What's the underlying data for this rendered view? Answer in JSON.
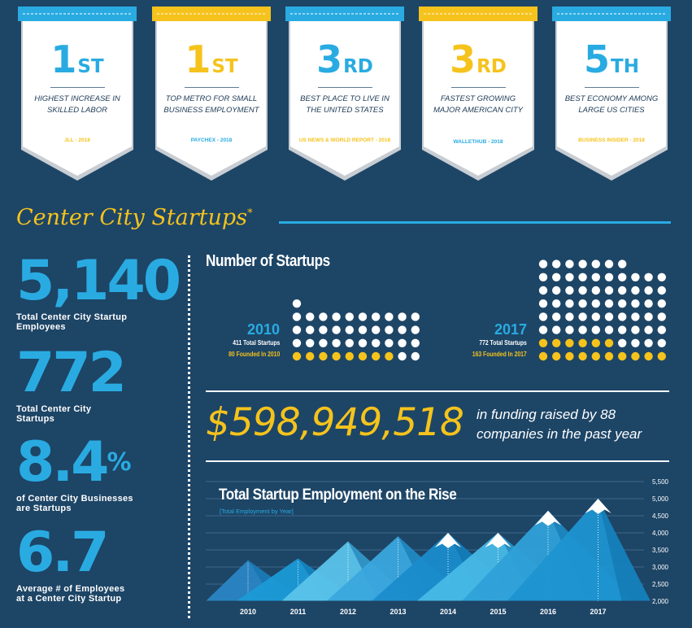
{
  "badges": [
    {
      "rank_num": "1",
      "rank_suffix": "ST",
      "desc": "HIGHEST INCREASE IN SKILLED LABOR",
      "source": "JLL - 2018",
      "banner_color": "#29abe2",
      "rank_color": "#29abe2",
      "source_color": "#f5c31c"
    },
    {
      "rank_num": "1",
      "rank_suffix": "ST",
      "desc": "TOP METRO FOR SMALL BUSINESS EMPLOYMENT",
      "source": "PAYCHEX - 2018",
      "banner_color": "#f5c31c",
      "rank_color": "#f5c31c",
      "source_color": "#29abe2"
    },
    {
      "rank_num": "3",
      "rank_suffix": "RD",
      "desc": "BEST PLACE TO LIVE IN THE UNITED STATES",
      "source": "US NEWS & WORLD REPORT - 2018",
      "banner_color": "#29abe2",
      "rank_color": "#29abe2",
      "source_color": "#f5c31c"
    },
    {
      "rank_num": "3",
      "rank_suffix": "RD",
      "desc": "FASTEST GROWING MAJOR AMERICAN CITY",
      "source": "WALLETHUB - 2018",
      "banner_color": "#f5c31c",
      "rank_color": "#f5c31c",
      "source_color": "#29abe2"
    },
    {
      "rank_num": "5",
      "rank_suffix": "TH",
      "desc": "BEST ECONOMY AMONG LARGE US CITIES",
      "source": "BUSINESS INSIDER - 2018",
      "banner_color": "#29abe2",
      "rank_color": "#29abe2",
      "source_color": "#f5c31c"
    }
  ],
  "section": {
    "title": "Center City Startups",
    "asterisk": "*"
  },
  "stats": [
    {
      "value": "5,140",
      "suffix": "",
      "caption_1": "Total Center City Startup",
      "caption_2": "Employees"
    },
    {
      "value": "772",
      "suffix": "",
      "caption_1": "Total Center City",
      "caption_2": "Startups"
    },
    {
      "value": "8.4",
      "suffix": "%",
      "caption_1": "of Center City Businesses",
      "caption_2": "are Startups"
    },
    {
      "value": "6.7",
      "suffix": "",
      "caption_1": "Average # of Employees",
      "caption_2": "at a Center City Startup"
    }
  ],
  "startups": {
    "title": "Number of Startups",
    "y2010": {
      "year": "2010",
      "total": "411 Total Startups",
      "founded": "80 Founded In 2010",
      "total_n": 411,
      "founded_n": 80
    },
    "y2017": {
      "year": "2017",
      "total": "772 Total Startups",
      "founded": "163 Founded In 2017",
      "total_n": 772,
      "founded_n": 163
    }
  },
  "funding": {
    "amount": "$598,949,518",
    "text": "in funding raised by 88 companies in the past year"
  },
  "chart_data": {
    "type": "area",
    "title": "Total Startup Employment on the Rise",
    "subtitle": "[Total Employment by Year]",
    "categories": [
      "2010",
      "2011",
      "2012",
      "2013",
      "2014",
      "2015",
      "2016",
      "2017"
    ],
    "values": [
      3200,
      3250,
      3750,
      3900,
      4000,
      4000,
      4650,
      5000
    ],
    "yticks": [
      "2,000",
      "2,500",
      "3,000",
      "3,500",
      "4,000",
      "4,500",
      "5,000",
      "5,500"
    ],
    "ylim": [
      2000,
      5500
    ]
  },
  "colors": {
    "background": "#1d4566",
    "blue": "#29abe2",
    "yellow": "#f5c31c",
    "white": "#ffffff"
  }
}
